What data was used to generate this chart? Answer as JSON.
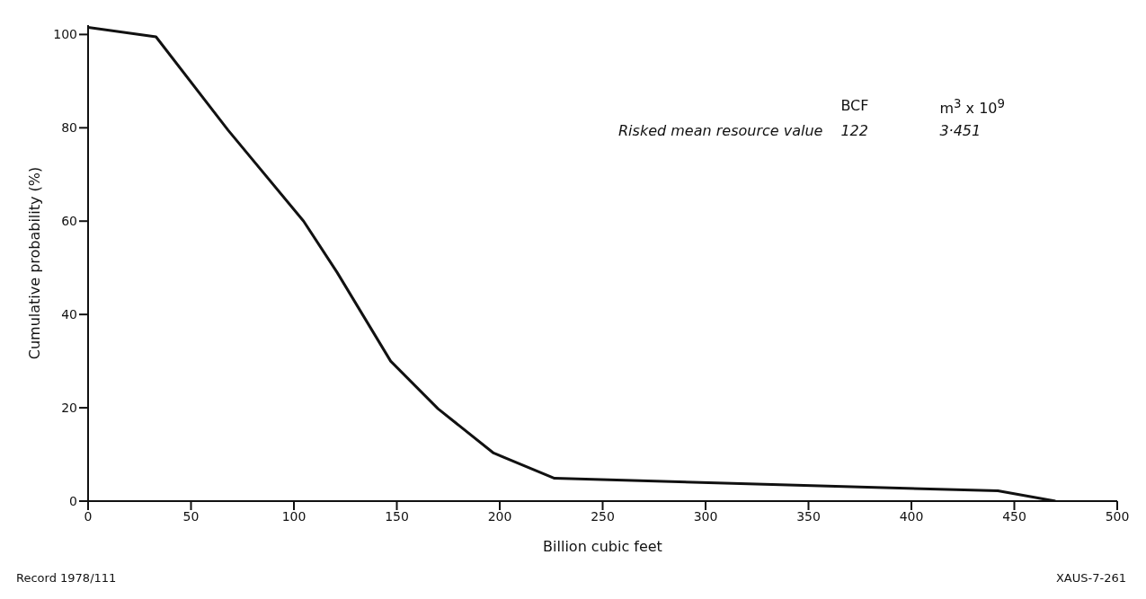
{
  "chart_data": {
    "type": "line",
    "xlabel": "Billion cubic feet",
    "ylabel": "Cumulative probability (%)",
    "x": [
      0,
      33,
      68,
      104.7,
      121,
      147,
      170,
      197,
      226.6,
      442,
      470
    ],
    "series": [
      {
        "color": "#111111",
        "values": [
          101.5,
          99.5,
          79.5,
          60,
          49,
          30,
          19.8,
          10.3,
          4.9,
          2.2,
          0
        ]
      }
    ],
    "xlim": [
      0,
      500
    ],
    "xticks": [
      0,
      50,
      100,
      150,
      200,
      250,
      300,
      350,
      400,
      450,
      500
    ],
    "ylim": [
      0,
      102
    ],
    "yticks": [
      0,
      20,
      40,
      60,
      80,
      100
    ],
    "grid": false,
    "legend": false,
    "marker": "none",
    "line_style": "solid",
    "annotations": [
      "BCF",
      "m$^{3}$ x 10$^{9}$",
      "Risked mean resource value",
      "122",
      "3·451",
      "Record 1978/111",
      "XAUS-7-261"
    ]
  }
}
